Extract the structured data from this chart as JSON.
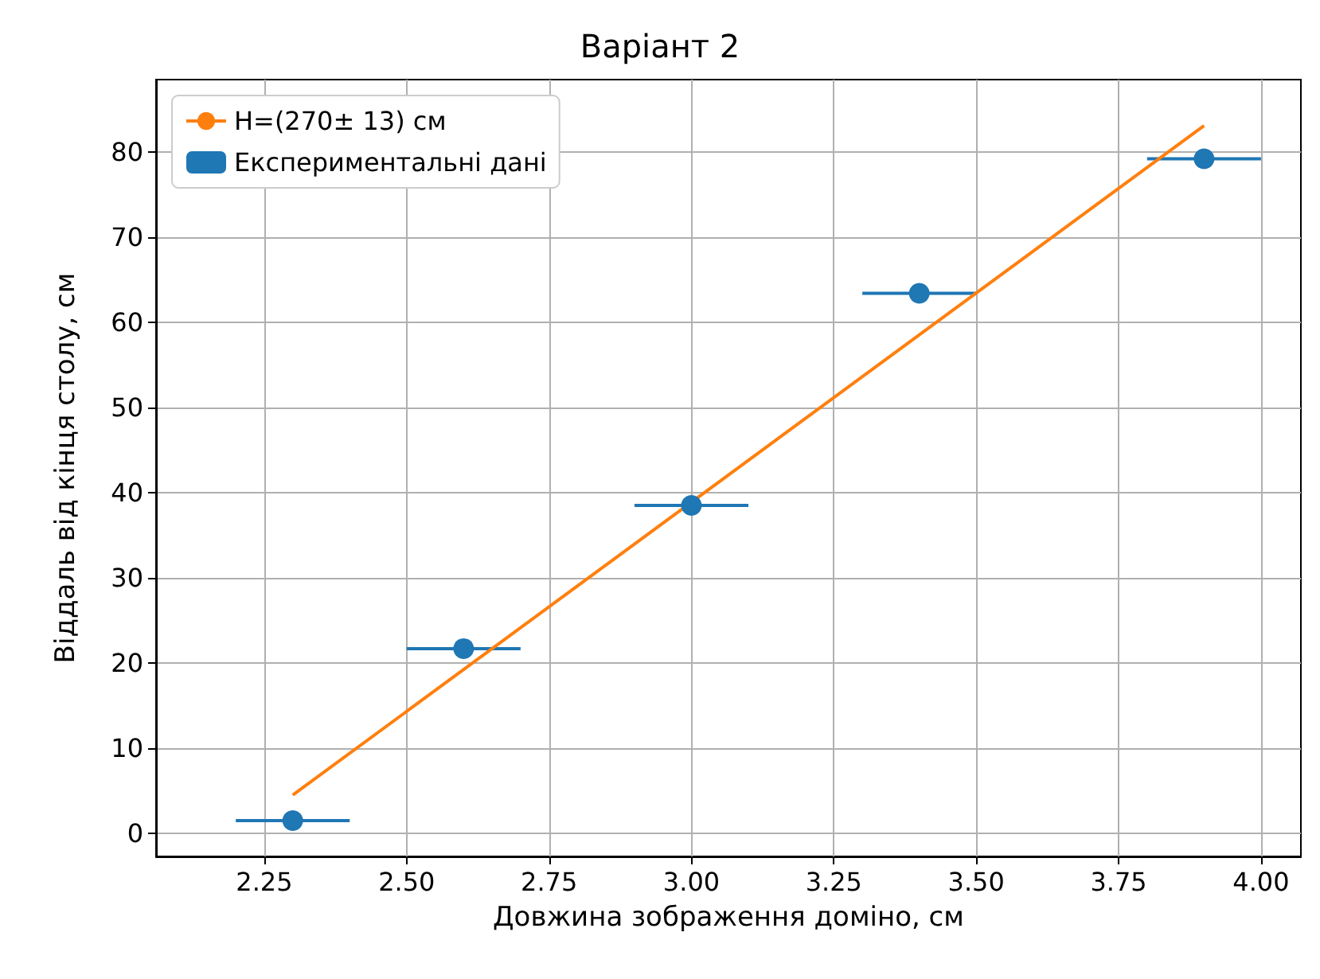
{
  "chart_data": {
    "type": "scatter",
    "title": "Варіант 2",
    "xlabel": "Довжина зображення доміно, см",
    "ylabel": "Віддаль від кінця столу, см",
    "series": [
      {
        "type": "line",
        "name": "H=(270± 13) см",
        "color": "#ff7f0e",
        "x": [
          2.3,
          3.9
        ],
        "values": [
          4.5,
          83.1
        ],
        "marker": "none"
      },
      {
        "name": "Експериментальні дані",
        "color": "#1f77b4",
        "x": [
          2.3,
          2.6,
          3.0,
          3.4,
          3.9
        ],
        "values": [
          1.5,
          21.7,
          38.5,
          63.4,
          79.2
        ],
        "xerrors": [
          0.1,
          0.1,
          0.1,
          0.1,
          0.1
        ],
        "marker": "circle"
      }
    ],
    "xlim": [
      2.06,
      4.07
    ],
    "xticks": [
      {
        "value": 2.25,
        "label": "2.25"
      },
      {
        "value": 2.5,
        "label": "2.50"
      },
      {
        "value": 2.75,
        "label": "2.75"
      },
      {
        "value": 3,
        "label": "3.00"
      },
      {
        "value": 3.25,
        "label": "3.25"
      },
      {
        "value": 3.5,
        "label": "3.50"
      },
      {
        "value": 3.75,
        "label": "3.75"
      },
      {
        "value": 4,
        "label": "4.00"
      }
    ],
    "ylim": [
      -2.7,
      88.5
    ],
    "yticks": [
      0,
      10,
      20,
      30,
      40,
      50,
      60,
      70,
      80
    ],
    "grid": true,
    "legend": "top left"
  }
}
